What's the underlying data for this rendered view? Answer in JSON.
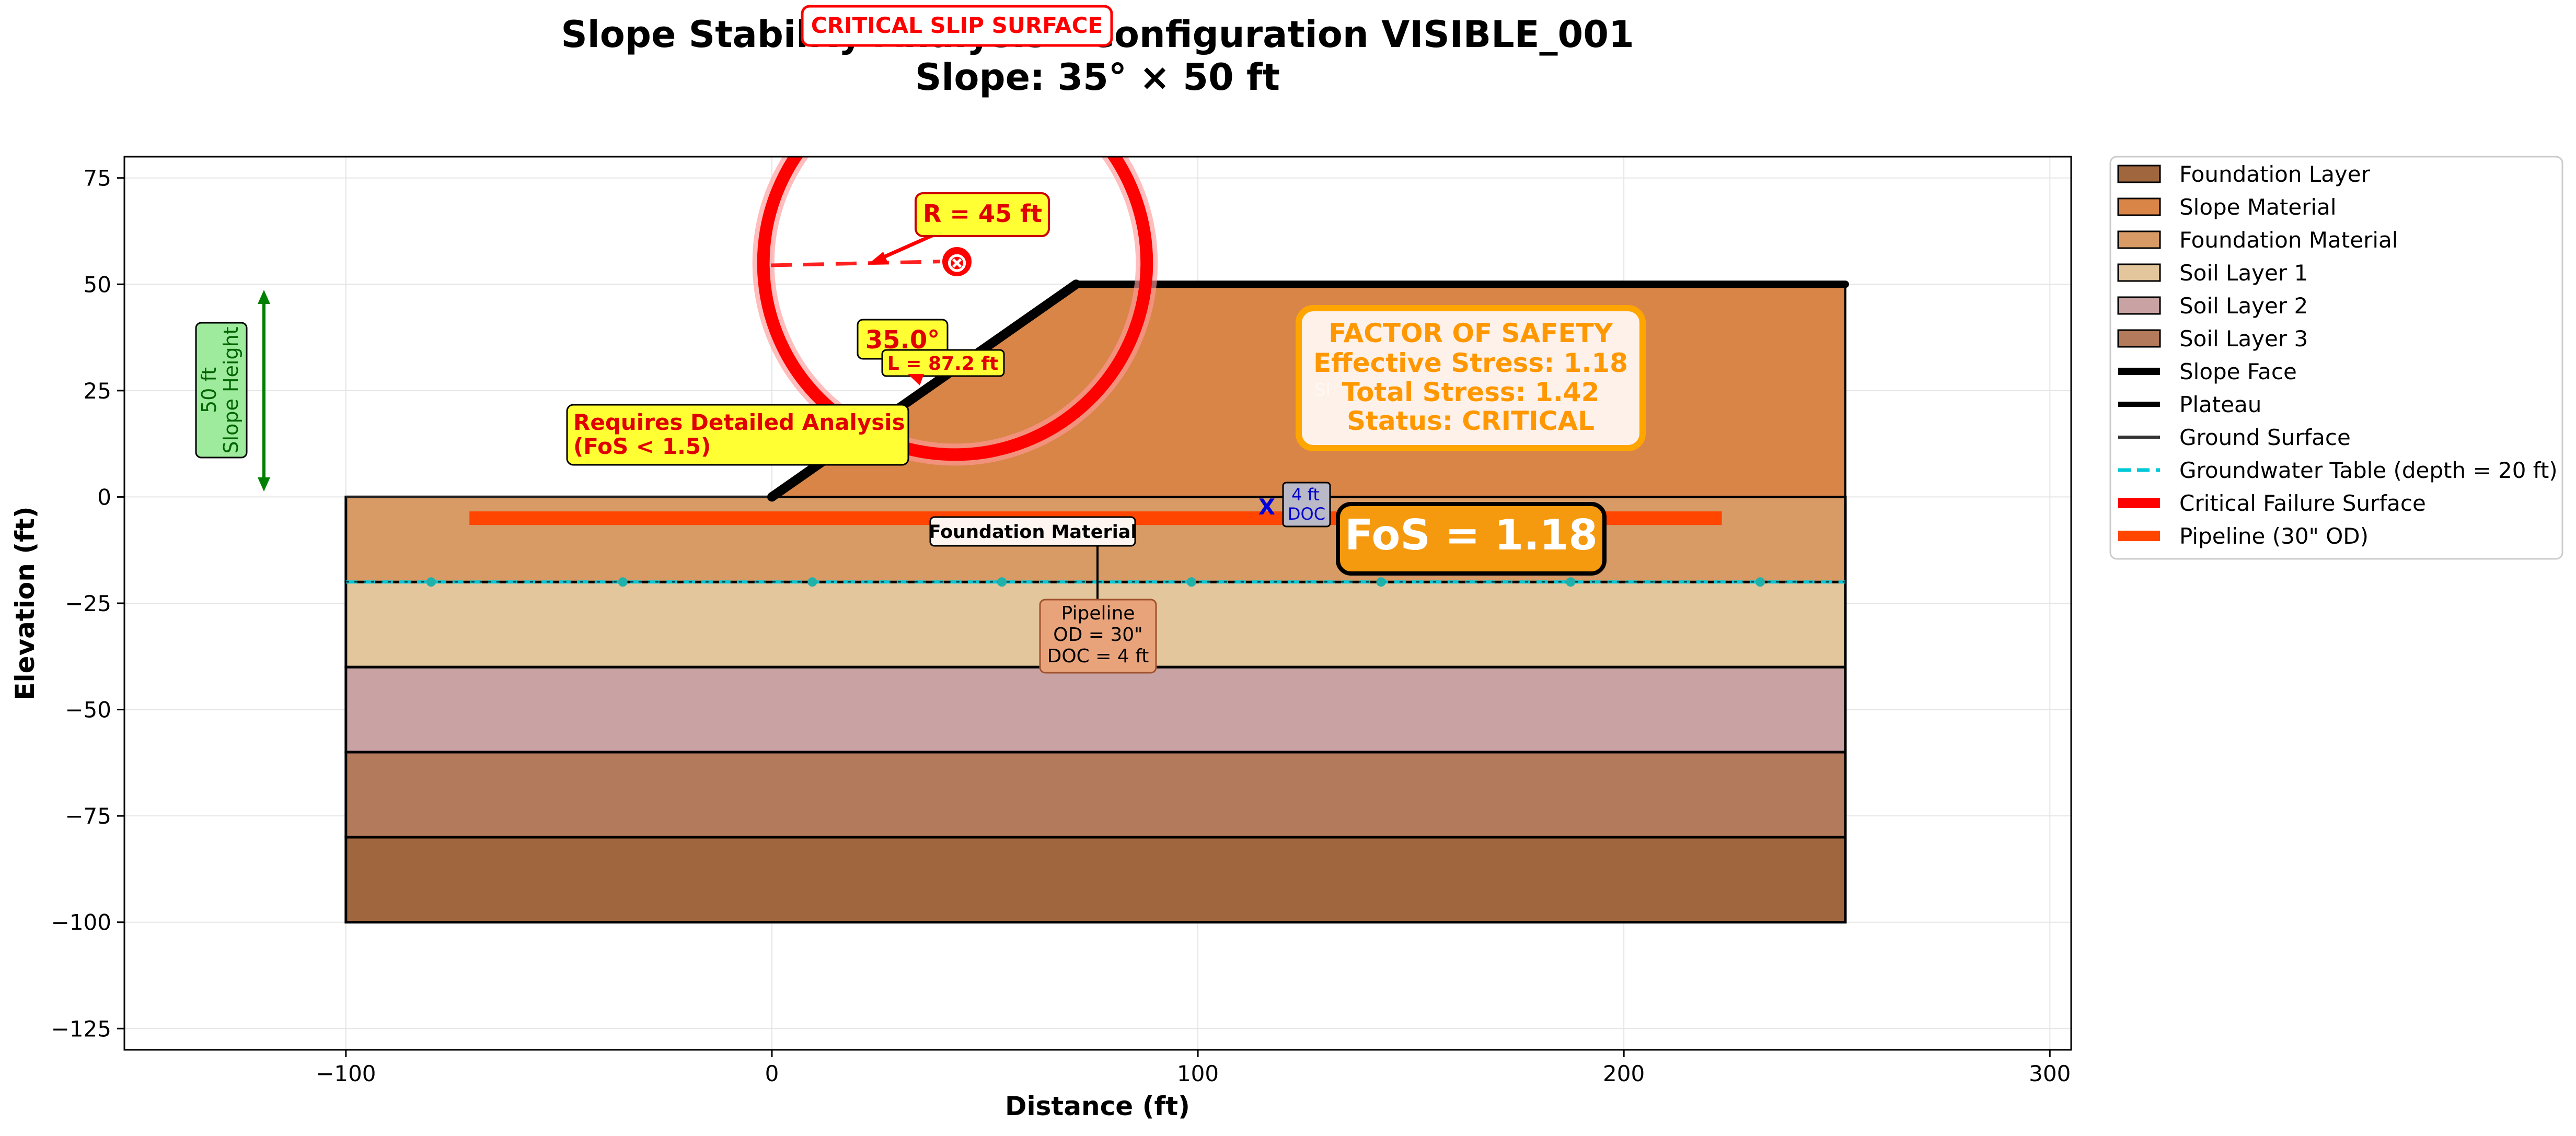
{
  "chart_data": {
    "type": "area",
    "title": "Slope Stability Analysis - Configuration VISIBLE_001",
    "subtitle": "Slope: 35° × 50 ft",
    "xlabel": "Distance (ft)",
    "ylabel": "Elevation (ft)",
    "xlim": [
      -152,
      305
    ],
    "ylim": [
      -130,
      80
    ],
    "grid": true,
    "legend_placement": "outside-right",
    "x_ticks": [
      -100,
      0,
      100,
      200,
      300
    ],
    "x_tick_labels": [
      "−100",
      "0",
      "100",
      "200",
      "300"
    ],
    "y_ticks": [
      75,
      50,
      25,
      0,
      -25,
      -50,
      -75,
      -100,
      -125
    ],
    "y_tick_labels": [
      "75",
      "50",
      "25",
      "0",
      "−25",
      "−50",
      "−75",
      "−100",
      "−125"
    ],
    "layers": [
      {
        "name": "Foundation Layer",
        "x": [
          -100,
          252
        ],
        "top": -80,
        "bottom": -100,
        "color": "#A0673F"
      },
      {
        "name": "Soil Layer 3",
        "x": [
          -100,
          252
        ],
        "top": -60,
        "bottom": -80,
        "color": "#B47A5C"
      },
      {
        "name": "Soil Layer 2",
        "x": [
          -100,
          252
        ],
        "top": -40,
        "bottom": -60,
        "color": "#C9A3A3"
      },
      {
        "name": "Soil Layer 1",
        "x": [
          -100,
          252
        ],
        "top": -20,
        "bottom": -40,
        "color": "#E3C69C"
      },
      {
        "name": "Foundation Material",
        "x": [
          -100,
          252
        ],
        "top": 0,
        "bottom": -20,
        "color": "#D89B66"
      },
      {
        "name": "Slope Material",
        "polygon": [
          [
            0,
            0
          ],
          [
            71.4,
            50
          ],
          [
            252,
            50
          ],
          [
            252,
            0
          ]
        ],
        "color": "#DA8548"
      }
    ],
    "slope_face": [
      [
        0,
        0
      ],
      [
        71.4,
        50
      ]
    ],
    "plateau": [
      [
        71.4,
        50
      ],
      [
        252,
        50
      ]
    ],
    "ground_surface": [
      [
        -100,
        0
      ],
      [
        0,
        0
      ]
    ],
    "groundwater_table": {
      "y": -20,
      "x": [
        -100,
        252
      ],
      "depth_ft": 20,
      "marker_x": [
        -80,
        -35,
        9.5,
        54,
        98.5,
        143,
        187.5,
        232
      ]
    },
    "critical_failure_surface": {
      "center": [
        43,
        55
      ],
      "radius": 45
    },
    "pipeline": {
      "y": -5,
      "x": [
        -71,
        223
      ],
      "od_in": 30,
      "doc_ft": 4
    },
    "factor_of_safety": {
      "effective_stress": 1.18,
      "total_stress": 1.42,
      "status": "CRITICAL"
    },
    "slope_angle_deg": 35.0,
    "slope_height_ft": 50,
    "slip_radius_ft": 45
  },
  "colors": {
    "critical": "#ff0000",
    "warning_orange": "#ff9800",
    "fos_badge": "#f59a0e",
    "pipeline": "#ff4500",
    "groundwater": "#00c8d8",
    "highlight_yellow": "#ffff33",
    "green": "#228b22"
  },
  "title": {
    "line1": "Slope Stability Analysis - Configuration VISIBLE_001",
    "line2": "Slope: 35° × 50 ft"
  },
  "axes": {
    "xlabel": "Distance (ft)",
    "ylabel": "Elevation (ft)"
  },
  "legend": [
    {
      "label": "Foundation Layer",
      "kind": "patch",
      "color": "#A0673F"
    },
    {
      "label": "Slope Material",
      "kind": "patch",
      "color": "#DA8548"
    },
    {
      "label": "Foundation Material",
      "kind": "patch",
      "color": "#D89B66"
    },
    {
      "label": "Soil Layer 1",
      "kind": "patch",
      "color": "#E3C69C"
    },
    {
      "label": "Soil Layer 2",
      "kind": "patch",
      "color": "#C9A3A3"
    },
    {
      "label": "Soil Layer 3",
      "kind": "patch",
      "color": "#B47A5C"
    },
    {
      "label": "Slope Face",
      "kind": "line-thick",
      "color": "#000000"
    },
    {
      "label": "Plateau",
      "kind": "line-mid",
      "color": "#000000"
    },
    {
      "label": "Ground Surface",
      "kind": "line-thin",
      "color": "#333333"
    },
    {
      "label": "Groundwater Table (depth = 20 ft)",
      "kind": "dashed",
      "color": "#00c8d8"
    },
    {
      "label": "Critical Failure Surface",
      "kind": "line-heavy",
      "color": "#ff0000"
    },
    {
      "label": "Pipeline (30\" OD)",
      "kind": "line-heavy",
      "color": "#ff4500"
    }
  ],
  "annotations": {
    "critical_slip_label": "CRITICAL SLIP SURFACE",
    "radius_label": "R = 45 ft",
    "center_marker": "⊗",
    "angle_label": "35.0°",
    "length_label": "L = 87.2 ft",
    "analysis_line1": "Requires Detailed Analysis",
    "analysis_line2": "(FoS < 1.5)",
    "slope_height_line1": "50 ft",
    "slope_height_line2": "Slope Height",
    "fos_box": {
      "line1": "FACTOR OF SAFETY",
      "line2": "Effective Stress: 1.18",
      "line3": "Total Stress: 1.42",
      "line4": "Status: CRITICAL"
    },
    "fos_badge": "FoS = 1.18",
    "foundation_label": "Foundation Material",
    "pipeline_box": {
      "line1": "Pipeline",
      "line2": "OD = 30\"",
      "line3": "DOC = 4 ft"
    },
    "doc_marker": "X",
    "doc_box": {
      "line1": "4 ft",
      "line2": "DOC"
    },
    "hidden_label_fragment": "Sl"
  }
}
